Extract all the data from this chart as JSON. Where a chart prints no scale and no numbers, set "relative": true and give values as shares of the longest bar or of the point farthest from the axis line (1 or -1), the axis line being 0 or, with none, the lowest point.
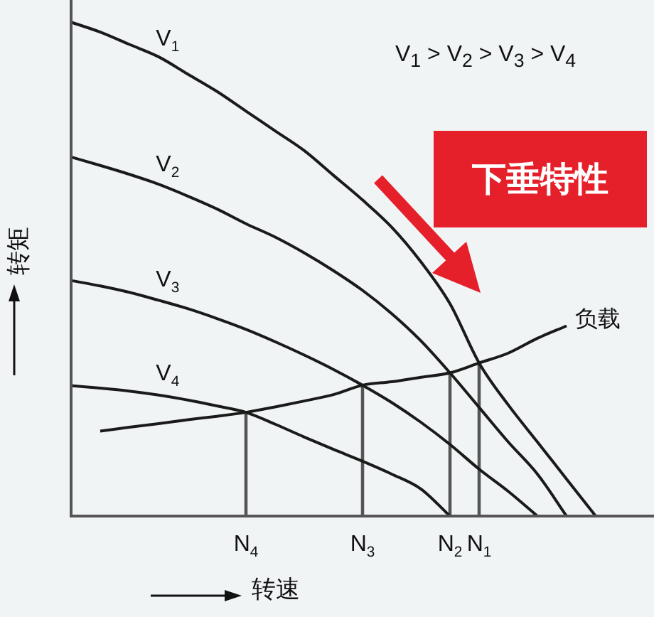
{
  "chart_data": {
    "type": "line",
    "relative": true,
    "xlabel": "转速",
    "ylabel": "转矩",
    "categories": [
      null,
      null,
      null,
      null,
      null,
      null,
      "N$_{4}$",
      null,
      null,
      null,
      "N$_{3}$",
      null,
      null,
      "N$_{2}$",
      "N$_{1}$",
      null,
      null,
      null,
      null,
      null,
      null
    ],
    "tick_labels": "x",
    "grid": false,
    "legend": false,
    "marker": "none",
    "line_style": "solid",
    "annotations": [
      "V$_{1}$ > V$_{2}$ > V$_{3}$ > V$_{4}$",
      "下垂特性"
    ],
    "series": [
      {
        "name": "V$_{1}$",
        "color": "#1a1a1a",
        "values": [
          1,
          0.98,
          0.955,
          0.93,
          0.895,
          0.86,
          0.82,
          0.78,
          0.74,
          0.69,
          0.64,
          0.585,
          0.515,
          0.43,
          0.31,
          0.225,
          0.15,
          0.075,
          0,
          null,
          null
        ]
      },
      {
        "name": "V$_{2}$",
        "color": "#1a1a1a",
        "values": [
          0.727,
          0.71,
          0.692,
          0.672,
          0.648,
          0.622,
          0.592,
          0.565,
          0.533,
          0.497,
          0.457,
          0.41,
          0.355,
          0.29,
          0.22,
          0.15,
          0.085,
          0,
          null,
          null,
          null
        ]
      },
      {
        "name": "V$_{3}$",
        "color": "#1a1a1a",
        "values": [
          0.477,
          0.466,
          0.453,
          0.437,
          0.42,
          0.4,
          0.378,
          0.353,
          0.326,
          0.297,
          0.265,
          0.23,
          0.19,
          0.145,
          0.095,
          0.05,
          0,
          null,
          null,
          null,
          null
        ]
      },
      {
        "name": "V$_{4}$",
        "color": "#1a1a1a",
        "values": [
          0.264,
          0.259,
          0.253,
          0.245,
          0.235,
          0.223,
          0.21,
          0.186,
          0.16,
          0.135,
          0.111,
          0.085,
          0.055,
          0,
          null,
          null,
          null,
          null,
          null,
          null,
          null
        ]
      },
      {
        "name": "负载",
        "color": "#1a1a1a",
        "values": [
          null,
          0.172,
          0.18,
          0.187,
          0.195,
          0.202,
          0.21,
          0.221,
          0.233,
          0.246,
          0.265,
          0.272,
          0.281,
          0.29,
          0.31,
          0.33,
          0.36,
          0.385,
          null,
          null,
          null
        ]
      },
      {
        "type": "bar",
        "color": "#555555",
        "values": [
          null,
          null,
          null,
          null,
          null,
          null,
          0.21,
          null,
          null,
          null,
          0.265,
          null,
          null,
          0.29,
          0.31,
          null,
          null,
          null,
          null,
          null,
          null
        ]
      }
    ]
  }
}
